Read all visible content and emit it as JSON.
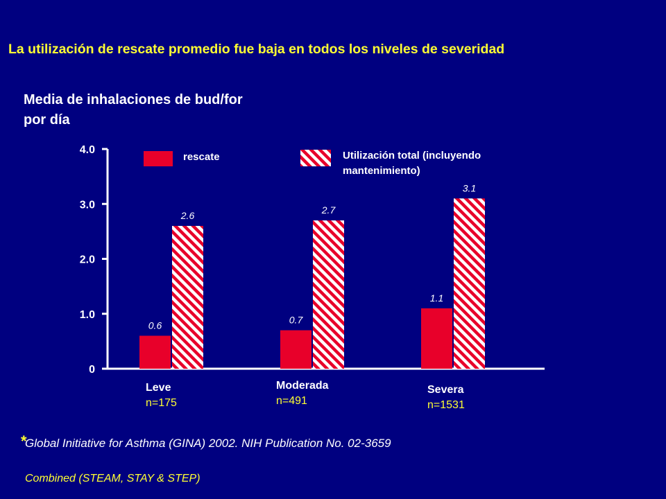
{
  "headline": "La utilización de rescate promedio fue baja en todos los niveles de severidad",
  "footnote": {
    "marker": "*",
    "text": "Global Initiative for Asthma (GINA) 2002. NIH Publication No. 02-3659",
    "sub": "Combined (STEAM, STAY & STEP)"
  },
  "colors": {
    "background": "#000080",
    "accent": "#ffff33",
    "rescue": "#e8002a",
    "total_stripe": "#e8002a",
    "total_bg": "#ffffff"
  },
  "chart_data": {
    "type": "bar",
    "ylabel": "Media de inhalaciones de bud/for por día",
    "ylim": [
      0,
      4
    ],
    "yticks": [
      "0",
      "1.0",
      "2.0",
      "3.0",
      "4.0"
    ],
    "categories": [
      "Leve",
      "Moderada",
      "Severa"
    ],
    "category_n": [
      "n=175",
      "n=491",
      "n=1531"
    ],
    "series": [
      {
        "name": "rescate",
        "values": [
          0.6,
          0.7,
          1.1
        ],
        "labels": [
          "0.6",
          "0.7",
          "1.1"
        ],
        "pattern": "solid"
      },
      {
        "name": "Utilización total (incluyendo mantenimiento)",
        "values": [
          2.6,
          2.7,
          3.1
        ],
        "labels": [
          "2.6",
          "2.7",
          "3.1"
        ],
        "pattern": "hatched"
      }
    ],
    "legend": "top"
  }
}
